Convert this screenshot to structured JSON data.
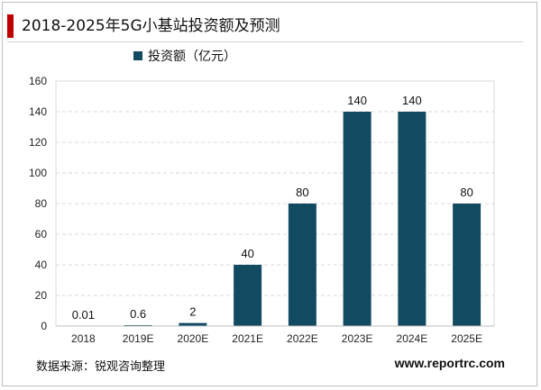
{
  "header": {
    "title": "2018-2025年5G小基站投资额及预测"
  },
  "footer": {
    "source": "数据来源：锐观咨询整理",
    "website": "www.reportrc.com"
  },
  "colors": {
    "bar": "#124a61",
    "accent": "#c00000",
    "grid": "#d9d9d9"
  },
  "chart_data": {
    "type": "bar",
    "title": "2018-2025年5G小基站投资额及预测",
    "categories": [
      "2018",
      "2019E",
      "2020E",
      "2021E",
      "2022E",
      "2023E",
      "2024E",
      "2025E"
    ],
    "series": [
      {
        "name": "投资额（亿元）",
        "values": [
          0.01,
          0.6,
          2,
          40,
          80,
          140,
          140,
          80
        ]
      }
    ],
    "data_labels": [
      "0.01",
      "0.6",
      "2",
      "40",
      "80",
      "140",
      "140",
      "80"
    ],
    "yticks": [
      "0",
      "20",
      "40",
      "60",
      "80",
      "100",
      "120",
      "140",
      "160"
    ],
    "ylim": [
      0,
      160
    ],
    "grid": true,
    "legend_position": "top-left"
  }
}
